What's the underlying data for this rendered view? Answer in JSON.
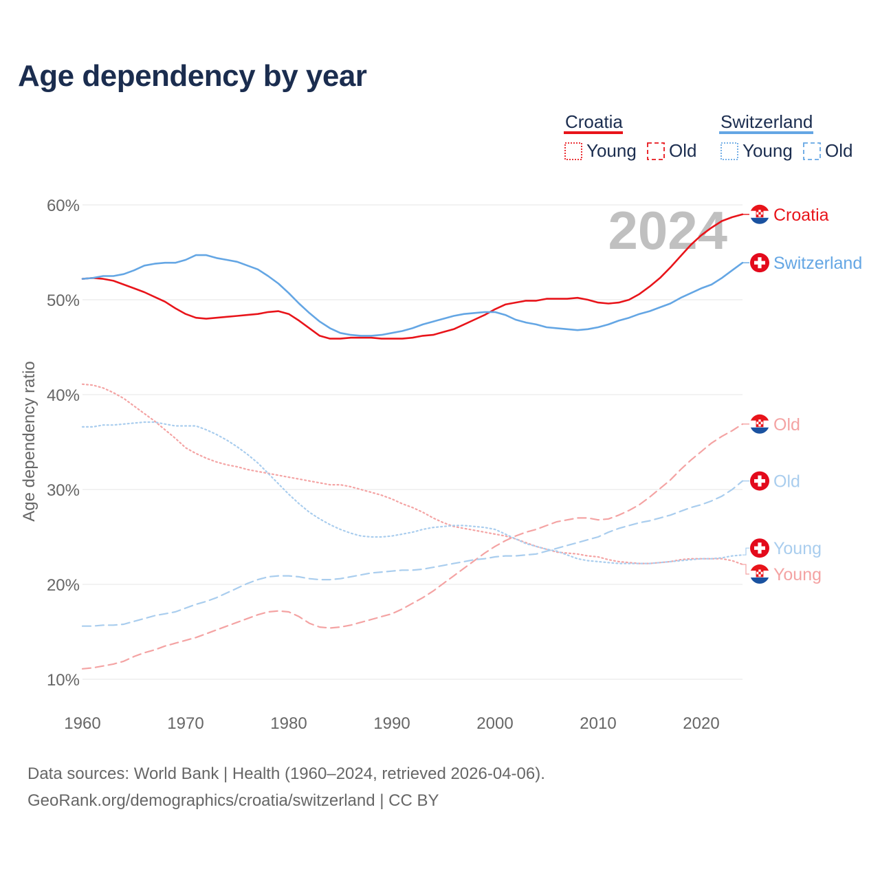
{
  "title": "Age dependency by year",
  "year_label": "2024",
  "legend": {
    "croatia": {
      "name": "Croatia",
      "young": "Young",
      "old": "Old"
    },
    "switzerland": {
      "name": "Switzerland",
      "young": "Young",
      "old": "Old"
    }
  },
  "footer": {
    "line1": "Data sources: World Bank | Health (1960–2024, retrieved 2026-04-06).",
    "line2": "GeoRank.org/demographics/croatia/switzerland | CC BY"
  },
  "colors": {
    "croatia": "#e8141a",
    "croatia_light": "#f4a3a3",
    "switzerland": "#64a6e4",
    "switzerland_light": "#a9cdee",
    "text_dark": "#1b2d4f",
    "axis_text": "#666666",
    "year_watermark": "#c0c0c0"
  },
  "chart_data": {
    "type": "line",
    "title": "Age dependency by year",
    "xlabel": "",
    "ylabel": "Age dependency ratio",
    "xlim": [
      1960,
      2024
    ],
    "ylim": [
      10,
      60
    ],
    "x_ticks": [
      1960,
      1970,
      1980,
      1990,
      2000,
      2010,
      2020
    ],
    "y_ticks": [
      10,
      20,
      30,
      40,
      50,
      60
    ],
    "y_tick_suffix": "%",
    "grid": true,
    "legend_position": "top-right",
    "x": [
      1960,
      1961,
      1962,
      1963,
      1964,
      1965,
      1966,
      1967,
      1968,
      1969,
      1970,
      1971,
      1972,
      1973,
      1974,
      1975,
      1976,
      1977,
      1978,
      1979,
      1980,
      1981,
      1982,
      1983,
      1984,
      1985,
      1986,
      1987,
      1988,
      1989,
      1990,
      1991,
      1992,
      1993,
      1994,
      1995,
      1996,
      1997,
      1998,
      1999,
      2000,
      2001,
      2002,
      2003,
      2004,
      2005,
      2006,
      2007,
      2008,
      2009,
      2010,
      2011,
      2012,
      2013,
      2014,
      2015,
      2016,
      2017,
      2018,
      2019,
      2020,
      2021,
      2022,
      2023,
      2024
    ],
    "series": [
      {
        "key": "croatia_total",
        "name": "Croatia",
        "country": "Croatia",
        "kind": "total",
        "end_label": "Croatia",
        "values": [
          52.2,
          52.3,
          52.2,
          52.0,
          51.6,
          51.2,
          50.8,
          50.3,
          49.8,
          49.1,
          48.5,
          48.1,
          48.0,
          48.1,
          48.2,
          48.3,
          48.4,
          48.5,
          48.7,
          48.8,
          48.5,
          47.8,
          47.0,
          46.2,
          45.9,
          45.9,
          46.0,
          46.0,
          46.0,
          45.9,
          45.9,
          45.9,
          46.0,
          46.2,
          46.3,
          46.6,
          46.9,
          47.4,
          47.9,
          48.4,
          49.0,
          49.5,
          49.7,
          49.9,
          49.9,
          50.1,
          50.1,
          50.1,
          50.2,
          50.0,
          49.7,
          49.6,
          49.7,
          50.0,
          50.6,
          51.4,
          52.3,
          53.4,
          54.6,
          55.8,
          56.8,
          57.6,
          58.3,
          58.7,
          59.0
        ]
      },
      {
        "key": "switzerland_total",
        "name": "Switzerland",
        "country": "Switzerland",
        "kind": "total",
        "end_label": "Switzerland",
        "values": [
          52.2,
          52.3,
          52.5,
          52.5,
          52.7,
          53.1,
          53.6,
          53.8,
          53.9,
          53.9,
          54.2,
          54.7,
          54.7,
          54.4,
          54.2,
          54.0,
          53.6,
          53.2,
          52.5,
          51.7,
          50.7,
          49.6,
          48.6,
          47.7,
          47.0,
          46.5,
          46.3,
          46.2,
          46.2,
          46.3,
          46.5,
          46.7,
          47.0,
          47.4,
          47.7,
          48.0,
          48.3,
          48.5,
          48.6,
          48.7,
          48.7,
          48.4,
          47.9,
          47.6,
          47.4,
          47.1,
          47.0,
          46.9,
          46.8,
          46.9,
          47.1,
          47.4,
          47.8,
          48.1,
          48.5,
          48.8,
          49.2,
          49.6,
          50.2,
          50.7,
          51.2,
          51.6,
          52.3,
          53.1,
          53.9
        ]
      },
      {
        "key": "croatia_young",
        "name": "Young",
        "country": "Croatia",
        "kind": "young",
        "end_label": "Young",
        "values": [
          41.1,
          41.0,
          40.7,
          40.2,
          39.6,
          38.8,
          38.0,
          37.2,
          36.3,
          35.4,
          34.4,
          33.8,
          33.3,
          32.9,
          32.6,
          32.4,
          32.1,
          31.9,
          31.7,
          31.5,
          31.3,
          31.1,
          30.9,
          30.7,
          30.5,
          30.5,
          30.3,
          30.0,
          29.7,
          29.4,
          29.0,
          28.5,
          28.1,
          27.6,
          27.0,
          26.5,
          26.1,
          25.9,
          25.7,
          25.5,
          25.3,
          25.1,
          24.8,
          24.4,
          24.0,
          23.7,
          23.4,
          23.3,
          23.2,
          23.0,
          22.9,
          22.6,
          22.4,
          22.3,
          22.2,
          22.2,
          22.3,
          22.4,
          22.6,
          22.7,
          22.7,
          22.7,
          22.7,
          22.5,
          22.1
        ]
      },
      {
        "key": "croatia_old",
        "name": "Old",
        "country": "Croatia",
        "kind": "old",
        "end_label": "Old",
        "values": [
          11.1,
          11.2,
          11.4,
          11.6,
          11.9,
          12.4,
          12.8,
          13.1,
          13.5,
          13.8,
          14.1,
          14.4,
          14.8,
          15.2,
          15.6,
          16.0,
          16.4,
          16.8,
          17.1,
          17.2,
          17.1,
          16.6,
          15.9,
          15.5,
          15.4,
          15.5,
          15.7,
          16.0,
          16.3,
          16.6,
          16.9,
          17.4,
          18.0,
          18.6,
          19.3,
          20.1,
          20.9,
          21.7,
          22.5,
          23.3,
          24.0,
          24.6,
          25.1,
          25.5,
          25.8,
          26.2,
          26.6,
          26.8,
          27.0,
          27.0,
          26.8,
          26.9,
          27.3,
          27.8,
          28.4,
          29.2,
          30.1,
          31.0,
          32.1,
          33.1,
          34.0,
          34.9,
          35.6,
          36.2,
          36.9
        ]
      },
      {
        "key": "switzerland_young",
        "name": "Young",
        "country": "Switzerland",
        "kind": "young",
        "end_label": "Young",
        "values": [
          36.6,
          36.6,
          36.8,
          36.8,
          36.9,
          37.0,
          37.1,
          37.1,
          36.9,
          36.7,
          36.7,
          36.7,
          36.3,
          35.8,
          35.2,
          34.5,
          33.7,
          32.8,
          31.7,
          30.6,
          29.5,
          28.5,
          27.6,
          26.9,
          26.3,
          25.8,
          25.4,
          25.1,
          25.0,
          25.0,
          25.1,
          25.3,
          25.5,
          25.8,
          26.0,
          26.1,
          26.2,
          26.2,
          26.1,
          26.0,
          25.8,
          25.3,
          24.8,
          24.3,
          24.0,
          23.7,
          23.5,
          23.1,
          22.7,
          22.5,
          22.4,
          22.3,
          22.2,
          22.2,
          22.2,
          22.2,
          22.3,
          22.4,
          22.5,
          22.6,
          22.7,
          22.7,
          22.8,
          23.0,
          23.1
        ]
      },
      {
        "key": "switzerland_old",
        "name": "Old",
        "country": "Switzerland",
        "kind": "old",
        "end_label": "Old",
        "values": [
          15.6,
          15.6,
          15.7,
          15.7,
          15.8,
          16.1,
          16.4,
          16.7,
          16.9,
          17.1,
          17.5,
          17.9,
          18.2,
          18.6,
          19.1,
          19.6,
          20.1,
          20.5,
          20.8,
          20.9,
          20.9,
          20.8,
          20.6,
          20.5,
          20.5,
          20.6,
          20.8,
          21.0,
          21.2,
          21.3,
          21.4,
          21.5,
          21.5,
          21.6,
          21.8,
          22.0,
          22.2,
          22.4,
          22.6,
          22.7,
          22.9,
          23.0,
          23.0,
          23.1,
          23.2,
          23.5,
          23.8,
          24.1,
          24.4,
          24.7,
          25.0,
          25.5,
          25.9,
          26.2,
          26.5,
          26.7,
          27.0,
          27.3,
          27.7,
          28.1,
          28.4,
          28.8,
          29.3,
          30.0,
          30.9
        ]
      }
    ]
  }
}
